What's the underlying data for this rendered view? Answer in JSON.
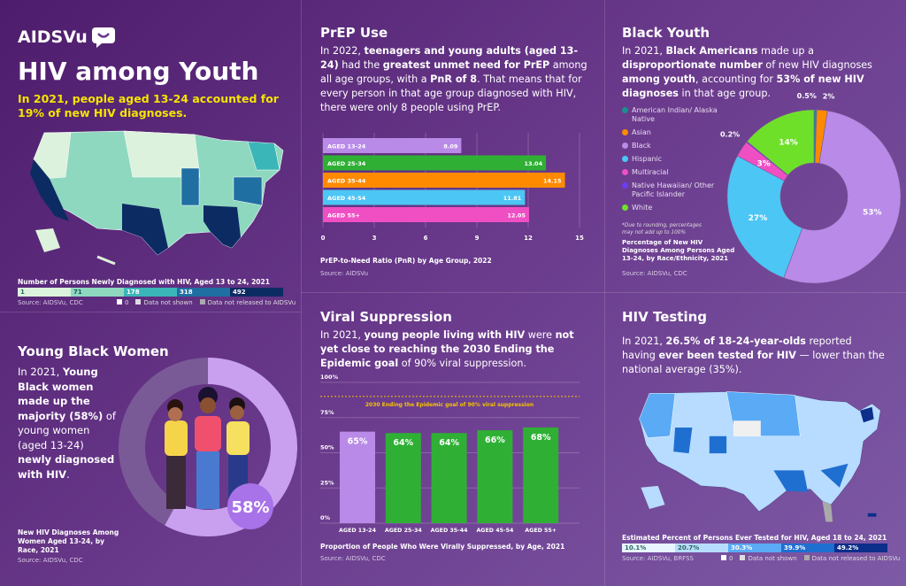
{
  "logo": {
    "text": "AIDSVu"
  },
  "youth": {
    "title": "HIV among Youth",
    "subtitle": "In 2021, people aged 13-24 accounted for 19% of new HIV diagnoses.",
    "map_caption": "Number of Persons Newly Diagnosed with HIV, Aged 13 to 24, 2021",
    "scale": [
      {
        "label": "1",
        "color": "#dcf2dc"
      },
      {
        "label": "71",
        "color": "#8fd8c0"
      },
      {
        "label": "178",
        "color": "#3bb6b8"
      },
      {
        "label": "318",
        "color": "#1f6fa3"
      },
      {
        "label": "492",
        "color": "#0d2b63"
      }
    ],
    "source": "Source: AIDSVu, CDC",
    "legend": [
      "0",
      "Data not shown",
      "Data not released to AIDSVu"
    ]
  },
  "women": {
    "title": "Young Black Women",
    "text_parts": [
      "In 2021, ",
      "Young Black women made up the majority (58%)",
      " of young women (aged 13-24) ",
      "newly diagnosed with HIV",
      "."
    ],
    "badge": "58%",
    "caption": "New HIV Diagnoses Among Women Aged 13-24, by Race, 2021",
    "source": "Source: AIDSVu, CDC"
  },
  "prep": {
    "title": "PrEP Use",
    "text_parts": [
      "In 2022, ",
      "teenagers and young adults (aged 13-24)",
      " had the ",
      "greatest unmet need for PrEP",
      " among all age groups, with a ",
      "PnR of 8",
      ". That means that for every person in that age group diagnosed with HIV, there were only 8 people using PrEP."
    ],
    "caption": "PrEP-to-Need Ratio (PnR) by Age Group, 2022",
    "source": "Source: AIDSVu"
  },
  "black": {
    "title": "Black Youth",
    "text_parts": [
      "In 2021, ",
      "Black Americans",
      " made up a ",
      "disproportionate number",
      " of new HIV diagnoses ",
      "among youth",
      ", accounting for ",
      "53% of new HIV diagnoses",
      " in that age group."
    ],
    "note": "*Due to rounding, percentages may not add up to 100%",
    "caption": "Percentage of New HIV Diagnoses Among Persons Aged 13-24, by Race/Ethnicity, 2021",
    "source": "Source: AIDSVu, CDC"
  },
  "viral": {
    "title": "Viral Suppression",
    "text_parts": [
      "In 2021, ",
      "young people living with HIV",
      " were ",
      "not yet close to reaching the 2030 Ending the Epidemic goal",
      " of 90% viral suppression."
    ],
    "caption": "Proportion of People Who Were Virally Suppressed, by Age, 2021",
    "source": "Source: AIDSVu, CDC"
  },
  "testing": {
    "title": "HIV Testing",
    "text_parts": [
      "In 2021, ",
      "26.5% of 18-24-year-olds",
      " reported having ",
      "ever been tested for HIV",
      " — lower than the national average (35%)."
    ],
    "map_caption": "Estimated Percent of Persons Ever Tested for HIV, Aged 18 to 24, 2021",
    "scale": [
      {
        "label": "10.1%",
        "color": "#e8f4ff"
      },
      {
        "label": "20.7%",
        "color": "#b8dcff"
      },
      {
        "label": "30.3%",
        "color": "#5aaaf5"
      },
      {
        "label": "39.9%",
        "color": "#1f6fd0"
      },
      {
        "label": "49.2%",
        "color": "#0d2e8a"
      }
    ],
    "source": "Source: AIDSVu, BRFSS",
    "legend": [
      "0",
      "Data not shown",
      "Data not released to AIDSVu"
    ]
  },
  "chart_data": [
    {
      "type": "bar",
      "orientation": "horizontal",
      "title": "PrEP-to-Need Ratio (PnR) by Age Group, 2022",
      "categories": [
        "AGED 13-24",
        "AGED 25-34",
        "AGED 35-44",
        "AGED 45-54",
        "AGED 55+"
      ],
      "values": [
        8.09,
        13.04,
        14.15,
        11.81,
        12.05
      ],
      "value_labels": [
        "8.09",
        "13.04",
        "14.15",
        "11.81",
        "12.05"
      ],
      "colors": [
        "#b98ae8",
        "#2fb034",
        "#ff8a00",
        "#4cc6f5",
        "#f04fc4"
      ],
      "xlim": [
        0,
        15
      ],
      "xticks": [
        "0",
        "3",
        "6",
        "9",
        "12",
        "15"
      ],
      "grid": true
    },
    {
      "type": "pie",
      "donut": true,
      "title": "Percentage of New HIV Diagnoses Among Persons Aged 13-24, by Race/Ethnicity, 2021",
      "categories": [
        "American Indian/ Alaska Native",
        "Asian",
        "Black",
        "Hispanic",
        "Multiracial",
        "Native Hawaiian/ Other Pacific Islander",
        "White"
      ],
      "values": [
        0.5,
        2,
        53,
        27,
        3,
        0.2,
        14
      ],
      "value_labels": [
        "0.5%",
        "2%",
        "53%",
        "27%",
        "3%",
        "0.2%",
        "14%"
      ],
      "colors": [
        "#1a8f8f",
        "#ff8a00",
        "#b98ae8",
        "#4cc6f5",
        "#f04fc4",
        "#6a3ef0",
        "#6fe02a"
      ],
      "legend": "left"
    },
    {
      "type": "bar",
      "title": "Proportion of People Who Were Virally Suppressed, by Age, 2021",
      "categories": [
        "AGED 13-24",
        "AGED 25-34",
        "AGED 35-44",
        "AGED 45-54",
        "AGED 55+"
      ],
      "values": [
        65,
        64,
        64,
        66,
        68
      ],
      "value_labels": [
        "65%",
        "64%",
        "64%",
        "66%",
        "68%"
      ],
      "colors": [
        "#b98ae8",
        "#2fb034",
        "#2fb034",
        "#2fb034",
        "#2fb034"
      ],
      "ylim": [
        0,
        100
      ],
      "yticks": [
        "0%",
        "25%",
        "50%",
        "75%",
        "100%"
      ],
      "goal": {
        "value": 90,
        "label": "2030 Ending the Epidemic goal of 90% viral suppression",
        "color": "#f5c400"
      },
      "grid": true
    },
    {
      "type": "pie",
      "donut": true,
      "title": "New HIV Diagnoses Among Women Aged 13-24, by Race, 2021",
      "values": [
        58,
        42
      ],
      "value_labels": [
        "58%"
      ],
      "colors": [
        "#c9a0f0",
        "#7a5a96"
      ]
    }
  ]
}
